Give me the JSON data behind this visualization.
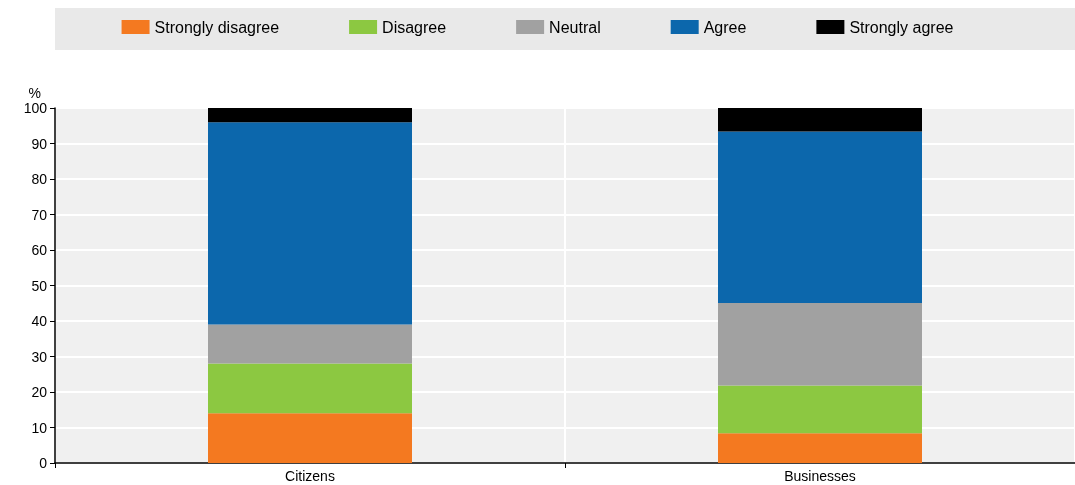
{
  "chart_data": {
    "type": "bar",
    "stacked": true,
    "ylabel": "%",
    "categories": [
      "Citizens",
      "Businesses"
    ],
    "series": [
      {
        "name": "Strongly disagree",
        "color": "#f47920",
        "values": [
          14,
          8.4
        ]
      },
      {
        "name": "Disagree",
        "color": "#8cc841",
        "values": [
          14,
          13.4
        ]
      },
      {
        "name": "Neutral",
        "color": "#a1a1a1",
        "values": [
          11,
          23.3
        ]
      },
      {
        "name": "Agree",
        "color": "#0c67ac",
        "values": [
          57,
          48.3
        ]
      },
      {
        "name": "Strongly agree",
        "color": "#000000",
        "values": [
          4,
          6.6
        ]
      }
    ],
    "ylim": [
      0,
      100
    ],
    "yticks": [
      0,
      10,
      20,
      30,
      40,
      50,
      60,
      70,
      80,
      90,
      100
    ],
    "grid": true,
    "legend": "top"
  }
}
